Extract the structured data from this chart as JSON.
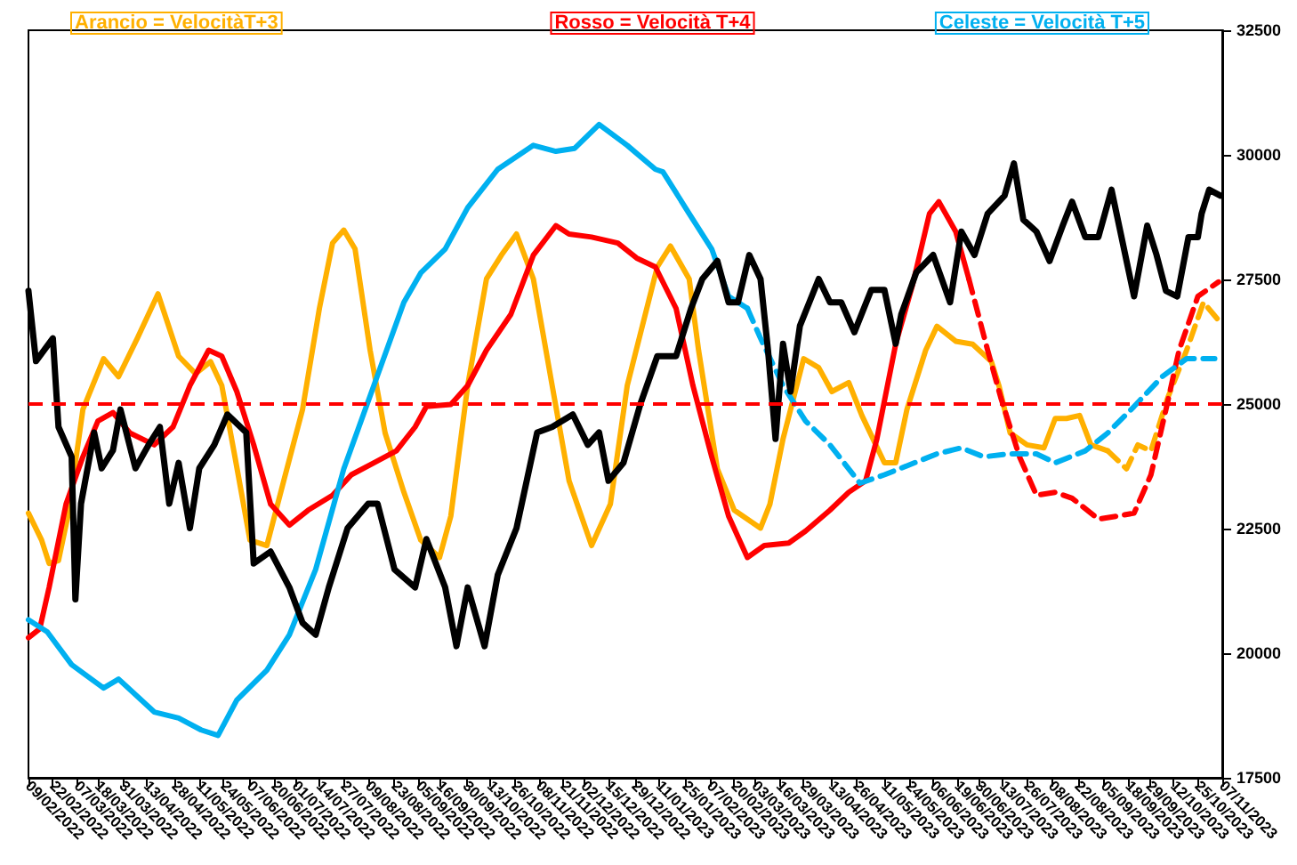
{
  "chart_data": {
    "type": "line",
    "xlim": [
      "2022-02-09",
      "2023-11-07"
    ],
    "ylim": [
      17500,
      32500
    ],
    "yticks": [
      17500,
      20000,
      22500,
      25000,
      27500,
      30000,
      32500
    ],
    "xticks": [
      {
        "value": "2022-02-09",
        "label": "09/02/2022"
      },
      {
        "value": "2022-02-22",
        "label": "22/02/2022"
      },
      {
        "value": "2022-03-07",
        "label": "07/03/2022"
      },
      {
        "value": "2022-03-18",
        "label": "18/03/2022"
      },
      {
        "value": "2022-03-31",
        "label": "31/03/2022"
      },
      {
        "value": "2022-04-13",
        "label": "13/04/2022"
      },
      {
        "value": "2022-04-28",
        "label": "28/04/2022"
      },
      {
        "value": "2022-05-11",
        "label": "11/05/2022"
      },
      {
        "value": "2022-05-24",
        "label": "24/05/2022"
      },
      {
        "value": "2022-06-07",
        "label": "07/06/2022"
      },
      {
        "value": "2022-06-20",
        "label": "20/06/2022"
      },
      {
        "value": "2022-07-01",
        "label": "01/07/2022"
      },
      {
        "value": "2022-07-14",
        "label": "14/07/2022"
      },
      {
        "value": "2022-07-27",
        "label": "27/07/2022"
      },
      {
        "value": "2022-08-09",
        "label": "09/08/2022"
      },
      {
        "value": "2022-08-23",
        "label": "23/08/2022"
      },
      {
        "value": "2022-09-05",
        "label": "05/09/2022"
      },
      {
        "value": "2022-09-16",
        "label": "16/09/2022"
      },
      {
        "value": "2022-09-30",
        "label": "30/09/2022"
      },
      {
        "value": "2022-10-13",
        "label": "13/10/2022"
      },
      {
        "value": "2022-10-26",
        "label": "26/10/2022"
      },
      {
        "value": "2022-11-08",
        "label": "08/11/2022"
      },
      {
        "value": "2022-11-21",
        "label": "21/11/2022"
      },
      {
        "value": "2022-12-02",
        "label": "02/12/2022"
      },
      {
        "value": "2022-12-15",
        "label": "15/12/2022"
      },
      {
        "value": "2022-12-29",
        "label": "29/12/2022"
      },
      {
        "value": "2023-01-11",
        "label": "11/01/2023"
      },
      {
        "value": "2023-01-25",
        "label": "25/01/2023"
      },
      {
        "value": "2023-02-07",
        "label": "07/02/2023"
      },
      {
        "value": "2023-02-20",
        "label": "20/02/2023"
      },
      {
        "value": "2023-03-03",
        "label": "03/03/2023"
      },
      {
        "value": "2023-03-16",
        "label": "16/03/2023"
      },
      {
        "value": "2023-03-29",
        "label": "29/03/2023"
      },
      {
        "value": "2023-04-13",
        "label": "13/04/2023"
      },
      {
        "value": "2023-04-26",
        "label": "26/04/2023"
      },
      {
        "value": "2023-05-11",
        "label": "11/05/2023"
      },
      {
        "value": "2023-05-24",
        "label": "24/05/2023"
      },
      {
        "value": "2023-06-06",
        "label": "06/06/2023"
      },
      {
        "value": "2023-06-19",
        "label": "19/06/2023"
      },
      {
        "value": "2023-06-30",
        "label": "30/06/2023"
      },
      {
        "value": "2023-07-13",
        "label": "13/07/2023"
      },
      {
        "value": "2023-07-26",
        "label": "26/07/2023"
      },
      {
        "value": "2023-08-08",
        "label": "08/08/2023"
      },
      {
        "value": "2023-08-22",
        "label": "22/08/2023"
      },
      {
        "value": "2023-09-05",
        "label": "05/09/2023"
      },
      {
        "value": "2023-09-18",
        "label": "18/09/2023"
      },
      {
        "value": "2023-09-29",
        "label": "29/09/2023"
      },
      {
        "value": "2023-10-12",
        "label": "12/10/2023"
      },
      {
        "value": "2023-10-25",
        "label": "25/10/2023"
      },
      {
        "value": "2023-11-07",
        "label": "07/11/2023"
      }
    ],
    "grid": false,
    "legend": "top",
    "marker": "none",
    "ref_lines": [
      {
        "axis": "y",
        "value": 25000,
        "color": "#ff0000",
        "line_style": "dashed"
      }
    ],
    "series": [
      {
        "color": "#000000",
        "line_style": "solid",
        "x": [
          "2022-02-09",
          "2022-02-13",
          "2022-02-22",
          "2022-02-25",
          "2022-03-04",
          "2022-03-06",
          "2022-03-09",
          "2022-03-16",
          "2022-03-20",
          "2022-03-26",
          "2022-03-30",
          "2022-04-07",
          "2022-04-14",
          "2022-04-20",
          "2022-04-25",
          "2022-04-30",
          "2022-05-06",
          "2022-05-11",
          "2022-05-19",
          "2022-05-26",
          "2022-06-05",
          "2022-06-09",
          "2022-06-18",
          "2022-06-28",
          "2022-07-05",
          "2022-07-12",
          "2022-07-19",
          "2022-07-29",
          "2022-08-09",
          "2022-08-14",
          "2022-08-23",
          "2022-09-03",
          "2022-09-09",
          "2022-09-19",
          "2022-09-25",
          "2022-10-01",
          "2022-10-10",
          "2022-10-17",
          "2022-10-27",
          "2022-11-07",
          "2022-11-15",
          "2022-11-26",
          "2022-12-04",
          "2022-12-10",
          "2022-12-15",
          "2022-12-23",
          "2023-01-01",
          "2023-01-10",
          "2023-01-12",
          "2023-01-20",
          "2023-01-28",
          "2023-02-03",
          "2023-02-11",
          "2023-02-17",
          "2023-02-22",
          "2023-02-28",
          "2023-03-06",
          "2023-03-10",
          "2023-03-14",
          "2023-03-18",
          "2023-03-22",
          "2023-03-27",
          "2023-04-06",
          "2023-04-12",
          "2023-04-18",
          "2023-04-25",
          "2023-05-04",
          "2023-05-11",
          "2023-05-17",
          "2023-05-20",
          "2023-05-28",
          "2023-06-06",
          "2023-06-15",
          "2023-06-21",
          "2023-06-28",
          "2023-07-05",
          "2023-07-14",
          "2023-07-19",
          "2023-07-24",
          "2023-07-31",
          "2023-08-07",
          "2023-08-14",
          "2023-08-19",
          "2023-08-26",
          "2023-09-02",
          "2023-09-09",
          "2023-09-17",
          "2023-09-21",
          "2023-09-28",
          "2023-10-03",
          "2023-10-08",
          "2023-10-14",
          "2023-10-20",
          "2023-10-25",
          "2023-10-27",
          "2023-10-31",
          "2023-11-06"
        ],
        "values": [
          27270,
          25860,
          26320,
          24540,
          23940,
          21080,
          23000,
          24430,
          23710,
          24070,
          24890,
          23710,
          24180,
          24540,
          23000,
          23820,
          22510,
          23710,
          24180,
          24790,
          24430,
          21800,
          22040,
          21320,
          20610,
          20370,
          21320,
          22510,
          23000,
          23000,
          21680,
          21320,
          22290,
          21320,
          20140,
          21320,
          20140,
          21570,
          22510,
          24430,
          24540,
          24790,
          24180,
          24430,
          23460,
          23820,
          25000,
          25960,
          25960,
          25960,
          26920,
          27510,
          27870,
          27040,
          27040,
          27990,
          27510,
          26080,
          24300,
          26210,
          25250,
          26570,
          27510,
          27040,
          27040,
          26440,
          27290,
          27290,
          26210,
          26800,
          27640,
          27990,
          27040,
          28460,
          27990,
          28820,
          29180,
          29830,
          28700,
          28460,
          27870,
          28580,
          29060,
          28350,
          28350,
          29300,
          27870,
          27160,
          28580,
          27990,
          27270,
          27160,
          28350,
          28350,
          28820,
          29300,
          29180
        ]
      },
      {
        "name": "Arancio = VelocitàT+3",
        "color": "#ffb000",
        "line_style": "solid",
        "x": [
          "2022-02-09",
          "2022-02-16",
          "2022-02-20",
          "2022-02-25",
          "2022-03-02",
          "2022-03-10",
          "2022-03-21",
          "2022-03-29",
          "2022-04-08",
          "2022-04-19",
          "2022-04-30",
          "2022-05-09",
          "2022-05-17",
          "2022-05-23",
          "2022-05-30",
          "2022-06-07",
          "2022-06-16",
          "2022-06-25",
          "2022-07-05",
          "2022-07-14",
          "2022-07-21",
          "2022-07-27",
          "2022-08-02",
          "2022-08-10",
          "2022-08-18",
          "2022-08-28",
          "2022-09-06",
          "2022-09-16",
          "2022-09-22",
          "2022-10-01",
          "2022-10-11",
          "2022-10-19",
          "2022-10-27",
          "2022-11-05",
          "2022-11-15",
          "2022-11-24",
          "2022-12-06",
          "2022-12-16",
          "2022-12-25",
          "2023-01-10",
          "2023-01-17",
          "2023-01-27",
          "2023-02-01",
          "2023-02-11",
          "2023-02-20",
          "2023-03-06",
          "2023-03-11",
          "2023-03-18",
          "2023-03-29",
          "2023-04-06",
          "2023-04-13",
          "2023-04-22",
          "2023-04-29",
          "2023-05-11",
          "2023-05-17",
          "2023-05-23",
          "2023-06-02",
          "2023-06-08",
          "2023-06-18",
          "2023-06-27",
          "2023-07-07",
          "2023-07-11",
          "2023-07-17",
          "2023-07-26",
          "2023-08-04",
          "2023-08-10",
          "2023-08-16",
          "2023-08-23",
          "2023-08-29",
          "2023-09-07"
        ],
        "values": [
          22810,
          22270,
          21800,
          21860,
          22750,
          24890,
          25910,
          25550,
          26320,
          27210,
          25960,
          25610,
          25850,
          25370,
          23940,
          22270,
          22160,
          23460,
          24890,
          26920,
          28230,
          28490,
          28110,
          26080,
          24420,
          23230,
          22270,
          21920,
          22750,
          25370,
          27510,
          27990,
          28410,
          27510,
          25370,
          23460,
          22160,
          22990,
          25370,
          27750,
          28170,
          27510,
          26080,
          23700,
          22870,
          22510,
          22990,
          24300,
          25910,
          25730,
          25250,
          25430,
          24770,
          23820,
          23820,
          24890,
          26080,
          26560,
          26260,
          26200,
          25850,
          25370,
          24420,
          24180,
          24120,
          24710,
          24710,
          24770,
          24180,
          24060
        ]
      },
      {
        "color": "#ffb000",
        "line_style": "dashed",
        "x": [
          "2023-09-07",
          "2023-09-17",
          "2023-09-23",
          "2023-09-30",
          "2023-10-09",
          "2023-10-19",
          "2023-10-28",
          "2023-11-05"
        ],
        "values": [
          24060,
          23700,
          24180,
          24060,
          25130,
          26080,
          27040,
          26680
        ]
      },
      {
        "name": "Rosso = Velocità T+4",
        "color": "#ff0000",
        "line_style": "solid",
        "x": [
          "2022-02-09",
          "2022-02-15",
          "2022-02-20",
          "2022-03-01",
          "2022-03-10",
          "2022-03-18",
          "2022-03-26",
          "2022-04-04",
          "2022-04-17",
          "2022-04-27",
          "2022-05-06",
          "2022-05-16",
          "2022-05-23",
          "2022-05-31",
          "2022-06-09",
          "2022-06-18",
          "2022-06-28",
          "2022-07-08",
          "2022-07-21",
          "2022-07-31",
          "2022-08-12",
          "2022-08-24",
          "2022-09-03",
          "2022-09-09",
          "2022-09-22",
          "2022-10-01",
          "2022-10-11",
          "2022-10-24",
          "2022-11-05",
          "2022-11-17",
          "2022-11-24",
          "2022-12-06",
          "2022-12-20",
          "2022-12-30",
          "2023-01-09",
          "2023-01-20",
          "2023-01-29",
          "2023-02-08",
          "2023-02-17",
          "2023-02-27",
          "2023-03-08",
          "2023-03-21",
          "2023-03-30",
          "2023-04-12",
          "2023-04-22",
          "2023-05-01",
          "2023-05-07",
          "2023-05-17",
          "2023-05-26",
          "2023-06-04",
          "2023-06-09",
          "2023-06-18",
          "2023-06-25"
        ],
        "values": [
          20310,
          20490,
          21320,
          22990,
          23940,
          24660,
          24830,
          24420,
          24180,
          24540,
          25370,
          26080,
          25960,
          25250,
          24180,
          22990,
          22570,
          22870,
          23170,
          23580,
          23820,
          24060,
          24540,
          24950,
          24990,
          25370,
          26080,
          26800,
          27990,
          28580,
          28410,
          28350,
          28230,
          27930,
          27750,
          26920,
          25370,
          23940,
          22750,
          21920,
          22160,
          22210,
          22450,
          22870,
          23230,
          23460,
          24300,
          26200,
          27390,
          28820,
          29060,
          28460,
          27510
        ]
      },
      {
        "color": "#ff0000",
        "line_style": "dashed",
        "x": [
          "2023-06-25",
          "2023-07-05",
          "2023-07-12",
          "2023-07-22",
          "2023-07-31",
          "2023-08-10",
          "2023-08-19",
          "2023-09-02",
          "2023-09-12",
          "2023-09-21",
          "2023-09-30",
          "2023-10-08",
          "2023-10-15",
          "2023-10-25",
          "2023-11-05"
        ],
        "values": [
          27510,
          26080,
          25130,
          23940,
          23170,
          23230,
          23110,
          22690,
          22750,
          22810,
          23580,
          24890,
          26080,
          27160,
          27450
        ]
      },
      {
        "name": "Celeste = Velocità T+5",
        "color": "#00b0f0",
        "line_style": "solid",
        "x": [
          "2022-02-09",
          "2022-02-19",
          "2022-03-04",
          "2022-03-21",
          "2022-03-29",
          "2022-04-17",
          "2022-04-30",
          "2022-05-12",
          "2022-05-21",
          "2022-05-31",
          "2022-06-16",
          "2022-06-28",
          "2022-07-12",
          "2022-07-27",
          "2022-08-12",
          "2022-08-28",
          "2022-09-06",
          "2022-09-19",
          "2022-10-01",
          "2022-10-17",
          "2022-11-05",
          "2022-11-17",
          "2022-11-27",
          "2022-12-10",
          "2022-12-25",
          "2023-01-09",
          "2023-01-13",
          "2023-01-27",
          "2023-02-08",
          "2023-02-17",
          "2023-02-27"
        ],
        "values": [
          20670,
          20430,
          19770,
          19300,
          19480,
          18820,
          18700,
          18460,
          18350,
          19060,
          19660,
          20370,
          21680,
          23700,
          25370,
          27040,
          27630,
          28110,
          28940,
          29710,
          30190,
          30070,
          30130,
          30610,
          30190,
          29710,
          29660,
          28820,
          28110,
          27160,
          26920
        ]
      },
      {
        "color": "#00b0f0",
        "line_style": "dashed",
        "x": [
          "2023-02-27",
          "2023-03-06",
          "2023-03-18",
          "2023-03-30",
          "2023-04-12",
          "2023-04-28",
          "2023-05-11",
          "2023-05-23",
          "2023-06-08",
          "2023-06-21",
          "2023-07-03",
          "2023-07-16",
          "2023-07-31",
          "2023-08-10",
          "2023-08-26",
          "2023-09-07",
          "2023-09-21",
          "2023-10-06",
          "2023-10-19",
          "2023-11-03"
        ],
        "values": [
          26920,
          26320,
          25370,
          24660,
          24180,
          23410,
          23580,
          23760,
          24000,
          24120,
          23940,
          24000,
          24000,
          23820,
          24060,
          24420,
          24950,
          25550,
          25910,
          25910
        ]
      }
    ]
  }
}
